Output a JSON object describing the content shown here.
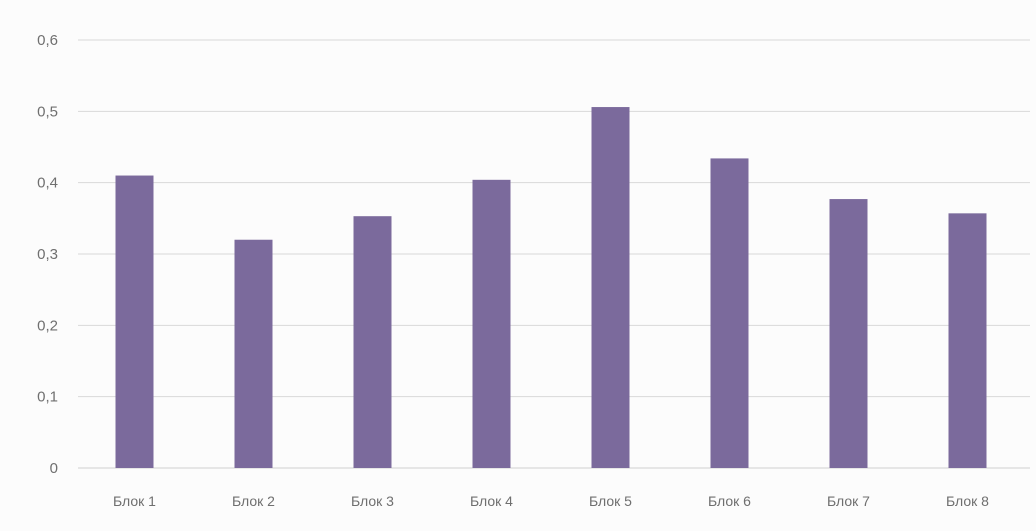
{
  "chart_data": {
    "type": "bar",
    "title": "",
    "xlabel": "",
    "ylabel": "",
    "categories": [
      "Блок 1",
      "Блок 2",
      "Блок 3",
      "Блок 4",
      "Блок 5",
      "Блок 6",
      "Блок 7",
      "Блок 8"
    ],
    "values": [
      0.41,
      0.32,
      0.353,
      0.404,
      0.506,
      0.434,
      0.377,
      0.357
    ],
    "ylim": [
      0,
      0.6
    ],
    "y_ticks": [
      "0",
      "0,1",
      "0,2",
      "0,3",
      "0,4",
      "0,5",
      "0,6"
    ],
    "y_tick_values": [
      0,
      0.1,
      0.2,
      0.3,
      0.4,
      0.5,
      0.6
    ],
    "grid": true,
    "legend": "none",
    "colors": {
      "bar": "#7b6a9c",
      "grid": "#d9d9d9",
      "text": "#6f6f6f"
    }
  }
}
